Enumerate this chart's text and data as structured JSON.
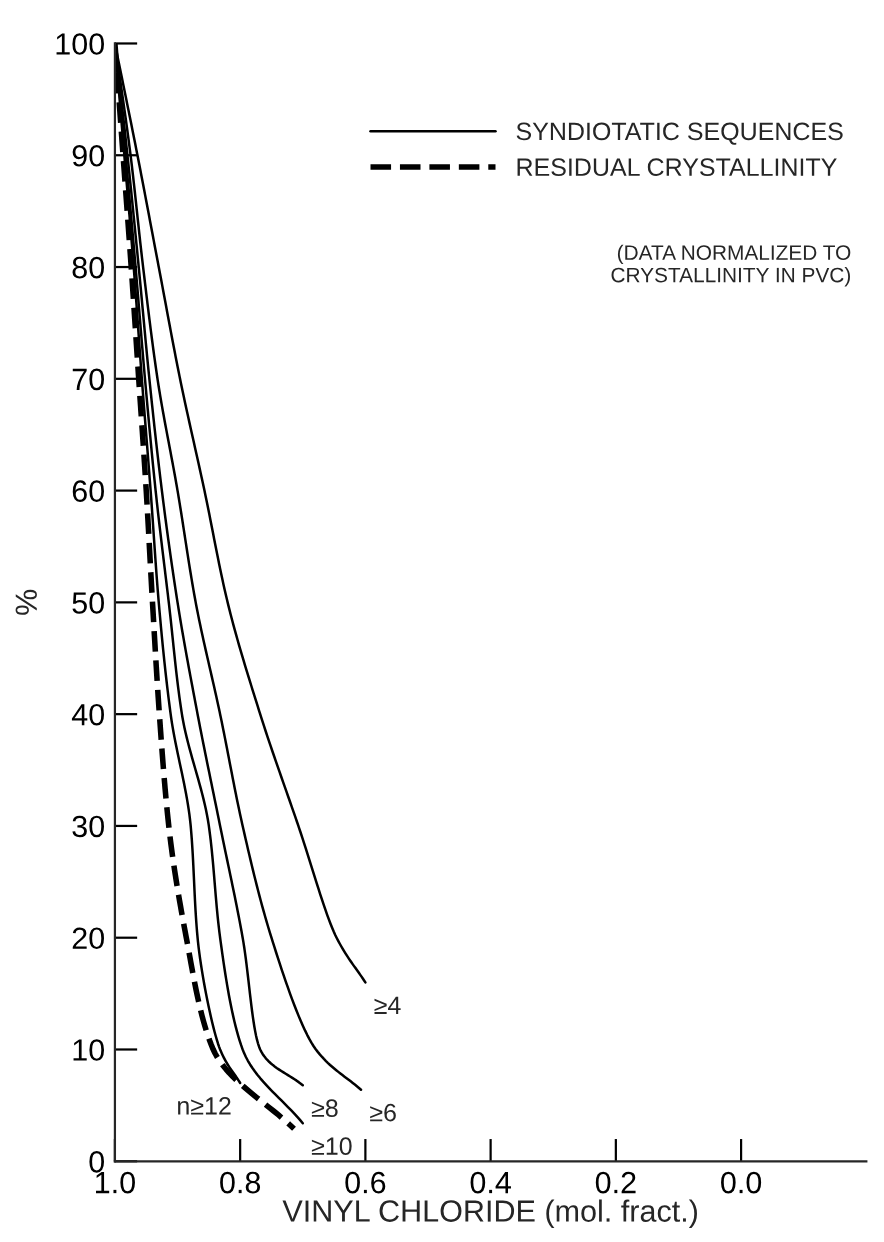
{
  "chart_data": {
    "type": "line",
    "xlabel": "VINYL CHLORIDE (mol. fract.)",
    "ylabel": "%",
    "xlim": [
      1.0,
      -0.2
    ],
    "xticks": [
      {
        "value": 1.0,
        "label": "1.0"
      },
      {
        "value": 0.8,
        "label": "0.8"
      },
      {
        "value": 0.6,
        "label": "0.6"
      },
      {
        "value": 0.4,
        "label": "0.4"
      },
      {
        "value": 0.2,
        "label": "0.2"
      },
      {
        "value": 0.0,
        "label": "0.0"
      }
    ],
    "ylim": [
      0,
      100
    ],
    "yticks": [
      0,
      10,
      20,
      30,
      40,
      50,
      60,
      70,
      80,
      90,
      100
    ],
    "grid": false,
    "legend": "top right",
    "marker": "none",
    "series": [
      {
        "name": "SYNDIOTATIC SEQUENCES",
        "color": "#000000",
        "line_style": "solid",
        "x": [
          1.0,
          0.964,
          0.93,
          0.896,
          0.857,
          0.82,
          0.768,
          0.707,
          0.646,
          0.6
        ],
        "values": [
          100,
          90,
          80,
          70,
          60,
          50,
          40,
          30,
          20,
          16
        ]
      },
      {
        "color": "#000000",
        "line_style": "solid",
        "x": [
          1.0,
          0.975,
          0.955,
          0.932,
          0.9,
          0.871,
          0.832,
          0.796,
          0.75,
          0.679,
          0.607
        ],
        "values": [
          100,
          90,
          80,
          70,
          60,
          50,
          40,
          30,
          20,
          10,
          6.4
        ]
      },
      {
        "color": "#000000",
        "line_style": "solid",
        "x": [
          1.0,
          0.98,
          0.962,
          0.945,
          0.925,
          0.9,
          0.868,
          0.832,
          0.796,
          0.768,
          0.7
        ],
        "values": [
          100,
          90,
          80,
          70,
          60,
          50,
          40,
          30,
          20,
          10,
          6.8
        ]
      },
      {
        "color": "#000000",
        "line_style": "solid",
        "x": [
          1.0,
          0.983,
          0.967,
          0.952,
          0.935,
          0.914,
          0.893,
          0.85,
          0.832,
          0.796,
          0.7
        ],
        "values": [
          100,
          90,
          80,
          70,
          60,
          50,
          40,
          30,
          20,
          10,
          3.4
        ]
      },
      {
        "color": "#000000",
        "line_style": "solid",
        "x": [
          1.0,
          0.985,
          0.97,
          0.957,
          0.943,
          0.93,
          0.911,
          0.879,
          0.868,
          0.832,
          0.8
        ],
        "values": [
          100,
          90,
          80,
          70,
          60,
          50,
          40,
          30,
          20,
          10,
          7
        ]
      },
      {
        "name": "RESIDUAL CRYSTALLINITY",
        "color": "#000000",
        "line_style": "dashed",
        "x": [
          1.0,
          0.987,
          0.974,
          0.962,
          0.95,
          0.94,
          0.929,
          0.914,
          0.886,
          0.843,
          0.714
        ],
        "values": [
          100,
          90,
          80,
          70,
          60,
          50,
          40,
          30,
          20,
          10,
          2.9
        ]
      }
    ],
    "annotations": [
      "(DATA NORMALIZED TO\nCRYSTALLINITY IN PVC)",
      {
        "text": "≥4",
        "x": 0.6,
        "y": 16
      },
      {
        "text": "≥6",
        "x": 0.607,
        "y": 6.4
      },
      {
        "text": "≥8",
        "x": 0.7,
        "y": 6.8
      },
      {
        "text": "≥10",
        "x": 0.7,
        "y": 3.4
      },
      {
        "text": "n≥12",
        "x": 0.8,
        "y": 7
      }
    ]
  }
}
